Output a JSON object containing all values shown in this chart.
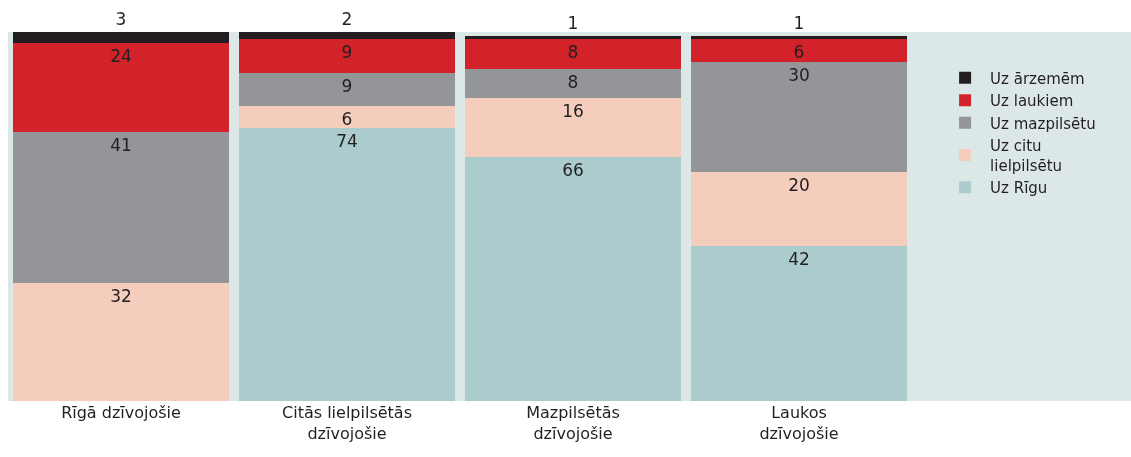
{
  "chart_data": {
    "type": "bar",
    "stacked": true,
    "data_labels": true,
    "legend": "right",
    "tick_labels": "x",
    "grid": false,
    "categories": [
      "Rīgā dzīvojošie",
      "Citās lielpilsētās\ndzīvojošie",
      "Mazpilsētās\ndzīvojošie",
      "Laukos\ndzīvojošie"
    ],
    "ylim": [
      0,
      100
    ],
    "series": [
      {
        "name": "Uz Rīgu",
        "color": "#abcbcd",
        "values": [
          null,
          74,
          66,
          42
        ]
      },
      {
        "name": "Uz citu\nlielpilsētu",
        "color": "#f4cdbd",
        "values": [
          32,
          6,
          16,
          20
        ]
      },
      {
        "name": "Uz mazpilsētu",
        "color": "#939598",
        "values": [
          41,
          9,
          8,
          30
        ]
      },
      {
        "name": "Uz laukiem",
        "color": "#d2232a",
        "values": [
          24,
          9,
          8,
          6
        ]
      },
      {
        "name": "Uz ārzemēm",
        "color": "#231f20",
        "values": [
          3,
          2,
          1,
          1
        ]
      }
    ]
  }
}
